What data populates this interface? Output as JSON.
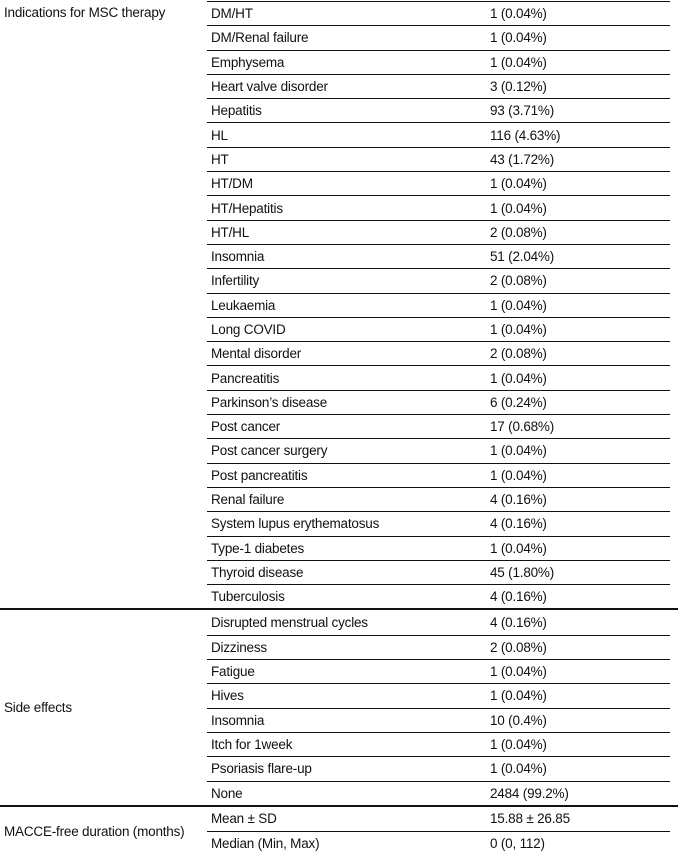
{
  "colors": {
    "background": "#ffffff",
    "text": "#111111",
    "rule": "#111111"
  },
  "table": {
    "sections": [
      {
        "label": "Indications for MSC therapy",
        "rows": [
          {
            "label": "DM/HT",
            "value": "1 (0.04%)"
          },
          {
            "label": "DM/Renal failure",
            "value": "1 (0.04%)"
          },
          {
            "label": "Emphysema",
            "value": "1 (0.04%)"
          },
          {
            "label": "Heart valve disorder",
            "value": "3 (0.12%)"
          },
          {
            "label": "Hepatitis",
            "value": "93 (3.71%)"
          },
          {
            "label": "HL",
            "value": "116 (4.63%)"
          },
          {
            "label": "HT",
            "value": "43 (1.72%)"
          },
          {
            "label": "HT/DM",
            "value": "1 (0.04%)"
          },
          {
            "label": "HT/Hepatitis",
            "value": "1 (0.04%)"
          },
          {
            "label": "HT/HL",
            "value": "2 (0.08%)"
          },
          {
            "label": "Insomnia",
            "value": "51 (2.04%)"
          },
          {
            "label": "Infertility",
            "value": "2 (0.08%)"
          },
          {
            "label": "Leukaemia",
            "value": "1 (0.04%)"
          },
          {
            "label": "Long COVID",
            "value": "1 (0.04%)"
          },
          {
            "label": "Mental disorder",
            "value": "2 (0.08%)"
          },
          {
            "label": "Pancreatitis",
            "value": "1 (0.04%)"
          },
          {
            "label": "Parkinson’s disease",
            "value": "6 (0.24%)"
          },
          {
            "label": "Post cancer",
            "value": "17 (0.68%)"
          },
          {
            "label": "Post cancer surgery",
            "value": "1 (0.04%)"
          },
          {
            "label": "Post pancreatitis",
            "value": "1 (0.04%)"
          },
          {
            "label": "Renal failure",
            "value": "4 (0.16%)"
          },
          {
            "label": "System lupus erythematosus",
            "value": "4 (0.16%)"
          },
          {
            "label": "Type-1 diabetes",
            "value": "1 (0.04%)"
          },
          {
            "label": "Thyroid disease",
            "value": "45 (1.80%)"
          },
          {
            "label": "Tuberculosis",
            "value": "4 (0.16%)"
          }
        ]
      },
      {
        "label": "Side effects",
        "rows": [
          {
            "label": "Disrupted menstrual cycles",
            "value": "4 (0.16%)"
          },
          {
            "label": "Dizziness",
            "value": "2 (0.08%)"
          },
          {
            "label": "Fatigue",
            "value": "1 (0.04%)"
          },
          {
            "label": "Hives",
            "value": "1 (0.04%)"
          },
          {
            "label": "Insomnia",
            "value": "10 (0.4%)"
          },
          {
            "label": "Itch for 1week",
            "value": "1 (0.04%)"
          },
          {
            "label": "Psoriasis flare-up",
            "value": "1 (0.04%)"
          },
          {
            "label": "None",
            "value": "2484 (99.2%)"
          }
        ]
      },
      {
        "label": "MACCE-free duration (months)",
        "rows": [
          {
            "label": "Mean ± SD",
            "value": "15.88 ± 26.85"
          },
          {
            "label": "Median (Min, Max)",
            "value": "0 (0, 112)"
          }
        ]
      }
    ]
  }
}
